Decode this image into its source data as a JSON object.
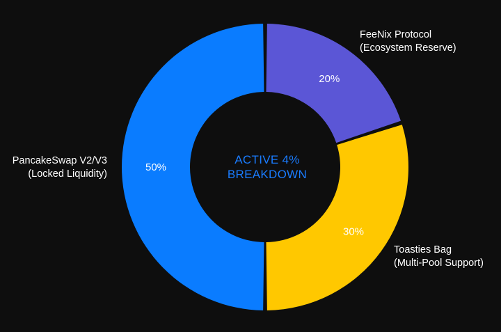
{
  "chart_data": {
    "type": "pie",
    "variant": "donut",
    "center_title": [
      "ACTIVE 4%",
      "BREAKDOWN"
    ],
    "slices": [
      {
        "label_line1": "PancakeSwap V2/V3",
        "label_line2": "(Locked Liquidity)",
        "value": 50,
        "value_label": "50%",
        "color": "#0a7cff"
      },
      {
        "label_line1": "FeeNix Protocol",
        "label_line2": "(Ecosystem Reserve)",
        "value": 20,
        "value_label": "20%",
        "color": "#5b56d6"
      },
      {
        "label_line1": "Toasties Bag",
        "label_line2": "(Multi-Pool Support)",
        "value": 30,
        "value_label": "30%",
        "color": "#ffc800"
      }
    ],
    "legend_placement": "outside-labels",
    "grid": false
  },
  "colors": {
    "background": "#0e0e0e",
    "center_text": "#1a7cff",
    "label_text": "#ffffff"
  }
}
